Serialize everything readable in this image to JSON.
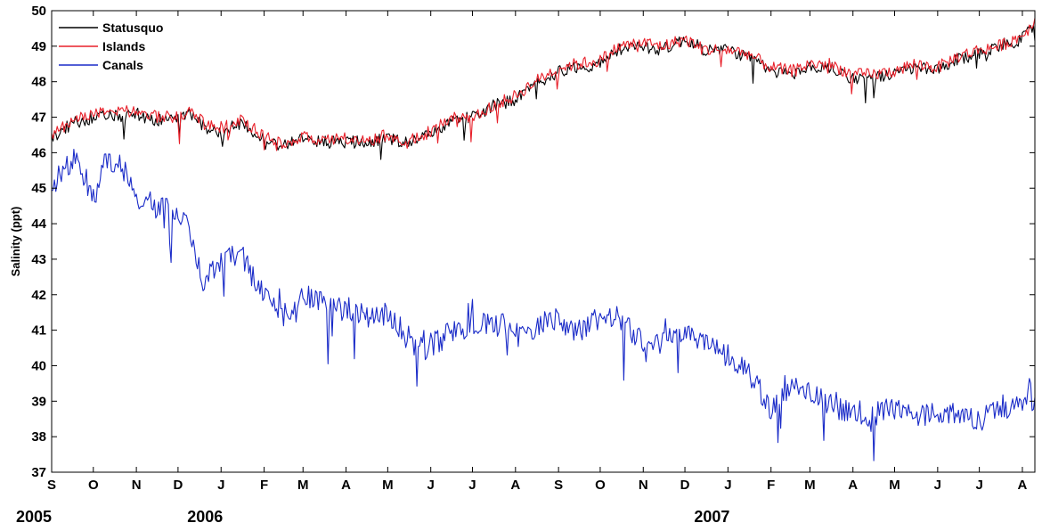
{
  "chart_data": {
    "type": "line",
    "title": "",
    "xlabel": "",
    "ylabel": "Salinity (ppt)",
    "ylim": [
      37,
      50
    ],
    "yticks": [
      37,
      38,
      39,
      40,
      41,
      42,
      43,
      44,
      45,
      46,
      47,
      48,
      49,
      50
    ],
    "xlim": [
      "2005-09-01",
      "2007-08-10"
    ],
    "month_ticks": [
      {
        "date": "2005-09-01",
        "label": "S"
      },
      {
        "date": "2005-10-01",
        "label": "O"
      },
      {
        "date": "2005-11-01",
        "label": "N"
      },
      {
        "date": "2005-12-01",
        "label": "D"
      },
      {
        "date": "2006-01-01",
        "label": "J"
      },
      {
        "date": "2006-02-01",
        "label": "F"
      },
      {
        "date": "2006-03-01",
        "label": "M"
      },
      {
        "date": "2006-04-01",
        "label": "A"
      },
      {
        "date": "2006-05-01",
        "label": "M"
      },
      {
        "date": "2006-06-01",
        "label": "J"
      },
      {
        "date": "2006-07-01",
        "label": "J"
      },
      {
        "date": "2006-08-01",
        "label": "A"
      },
      {
        "date": "2006-09-01",
        "label": "S"
      },
      {
        "date": "2006-10-01",
        "label": "O"
      },
      {
        "date": "2006-11-01",
        "label": "N"
      },
      {
        "date": "2006-12-01",
        "label": "D"
      },
      {
        "date": "2007-01-01",
        "label": "J"
      },
      {
        "date": "2007-02-01",
        "label": "F"
      },
      {
        "date": "2007-03-01",
        "label": "M"
      },
      {
        "date": "2007-04-01",
        "label": "A"
      },
      {
        "date": "2007-05-01",
        "label": "M"
      },
      {
        "date": "2007-06-01",
        "label": "J"
      },
      {
        "date": "2007-07-01",
        "label": "J"
      },
      {
        "date": "2007-08-01",
        "label": "A"
      }
    ],
    "year_labels": [
      {
        "date": "2005-09-01",
        "label": "2005"
      },
      {
        "date": "2006-01-01",
        "label": "2006"
      },
      {
        "date": "2007-01-01",
        "label": "2007"
      }
    ],
    "legend": {
      "position": "top-left",
      "entries": [
        "Statusquo",
        "Islands",
        "Canals"
      ]
    },
    "grid": false,
    "series": [
      {
        "name": "Statusquo",
        "color": "#000000",
        "x": [
          "2005-09-01",
          "2005-09-15",
          "2005-10-01",
          "2005-10-15",
          "2005-11-01",
          "2005-11-15",
          "2005-12-01",
          "2005-12-10",
          "2005-12-20",
          "2006-01-01",
          "2006-01-15",
          "2006-02-01",
          "2006-02-15",
          "2006-03-01",
          "2006-03-15",
          "2006-04-01",
          "2006-04-15",
          "2006-05-01",
          "2006-05-15",
          "2006-06-01",
          "2006-06-15",
          "2006-07-01",
          "2006-07-15",
          "2006-08-01",
          "2006-08-15",
          "2006-09-01",
          "2006-09-15",
          "2006-10-01",
          "2006-10-15",
          "2006-11-01",
          "2006-11-15",
          "2006-12-01",
          "2006-12-15",
          "2007-01-01",
          "2007-01-15",
          "2007-02-01",
          "2007-02-15",
          "2007-03-01",
          "2007-03-15",
          "2007-04-01",
          "2007-04-15",
          "2007-05-01",
          "2007-05-15",
          "2007-06-01",
          "2007-06-15",
          "2007-07-01",
          "2007-07-15",
          "2007-08-01",
          "2007-08-10"
        ],
        "y": [
          46.4,
          46.8,
          47.0,
          47.0,
          47.1,
          46.9,
          47.0,
          47.1,
          46.7,
          46.6,
          46.8,
          46.4,
          46.2,
          46.4,
          46.3,
          46.3,
          46.3,
          46.4,
          46.3,
          46.5,
          46.9,
          47.0,
          47.3,
          47.5,
          47.9,
          48.3,
          48.4,
          48.5,
          48.9,
          49.0,
          48.9,
          49.2,
          48.9,
          48.9,
          48.7,
          48.3,
          48.2,
          48.4,
          48.4,
          48.1,
          48.1,
          48.2,
          48.4,
          48.3,
          48.6,
          48.8,
          49.0,
          49.2,
          49.6
        ]
      },
      {
        "name": "Islands",
        "color": "#e8202a",
        "x": [
          "2005-09-01",
          "2005-09-15",
          "2005-10-01",
          "2005-10-15",
          "2005-11-01",
          "2005-11-15",
          "2005-12-01",
          "2005-12-10",
          "2005-12-20",
          "2006-01-01",
          "2006-01-15",
          "2006-02-01",
          "2006-02-15",
          "2006-03-01",
          "2006-03-15",
          "2006-04-01",
          "2006-04-15",
          "2006-05-01",
          "2006-05-15",
          "2006-06-01",
          "2006-06-15",
          "2006-07-01",
          "2006-07-15",
          "2006-08-01",
          "2006-08-15",
          "2006-09-01",
          "2006-09-15",
          "2006-10-01",
          "2006-10-15",
          "2006-11-01",
          "2006-11-15",
          "2006-12-01",
          "2006-12-15",
          "2007-01-01",
          "2007-01-15",
          "2007-02-01",
          "2007-02-15",
          "2007-03-01",
          "2007-03-15",
          "2007-04-01",
          "2007-04-15",
          "2007-05-01",
          "2007-05-15",
          "2007-06-01",
          "2007-06-15",
          "2007-07-01",
          "2007-07-15",
          "2007-08-01",
          "2007-08-10"
        ],
        "y": [
          46.5,
          46.9,
          47.1,
          47.1,
          47.2,
          47.0,
          47.0,
          47.2,
          46.8,
          46.7,
          46.9,
          46.5,
          46.2,
          46.5,
          46.3,
          46.4,
          46.3,
          46.5,
          46.3,
          46.6,
          47.0,
          47.0,
          47.3,
          47.6,
          48.0,
          48.4,
          48.5,
          48.6,
          49.0,
          49.1,
          49.0,
          49.2,
          48.9,
          48.9,
          48.8,
          48.4,
          48.3,
          48.5,
          48.5,
          48.2,
          48.2,
          48.3,
          48.5,
          48.4,
          48.7,
          48.9,
          49.0,
          49.3,
          49.7
        ]
      },
      {
        "name": "Canals",
        "color": "#1a2bc8",
        "x": [
          "2005-09-01",
          "2005-09-10",
          "2005-09-20",
          "2005-10-01",
          "2005-10-10",
          "2005-10-20",
          "2005-11-01",
          "2005-11-15",
          "2005-12-01",
          "2005-12-10",
          "2005-12-20",
          "2006-01-01",
          "2006-01-15",
          "2006-02-01",
          "2006-02-15",
          "2006-03-01",
          "2006-03-15",
          "2006-04-01",
          "2006-04-15",
          "2006-05-01",
          "2006-05-15",
          "2006-06-01",
          "2006-06-15",
          "2006-07-01",
          "2006-07-15",
          "2006-08-01",
          "2006-08-15",
          "2006-09-01",
          "2006-09-15",
          "2006-10-01",
          "2006-10-15",
          "2006-11-01",
          "2006-11-15",
          "2006-12-01",
          "2006-12-15",
          "2007-01-01",
          "2007-01-15",
          "2007-02-01",
          "2007-02-15",
          "2007-03-01",
          "2007-03-15",
          "2007-04-01",
          "2007-04-15",
          "2007-05-01",
          "2007-05-15",
          "2007-06-01",
          "2007-06-15",
          "2007-07-01",
          "2007-07-15",
          "2007-08-01",
          "2007-08-10"
        ],
        "y": [
          44.9,
          45.6,
          45.9,
          44.6,
          45.9,
          45.7,
          44.8,
          44.5,
          44.3,
          43.8,
          42.3,
          43.0,
          43.2,
          41.9,
          41.4,
          42.1,
          41.7,
          41.6,
          41.4,
          41.5,
          40.8,
          40.6,
          40.9,
          41.1,
          41.2,
          41.1,
          41.0,
          41.3,
          41.0,
          41.4,
          41.3,
          40.6,
          40.7,
          40.9,
          40.6,
          40.3,
          39.9,
          38.8,
          39.3,
          39.3,
          38.9,
          38.7,
          38.6,
          38.8,
          38.6,
          38.7,
          38.7,
          38.4,
          38.8,
          39.0,
          39.1
        ]
      }
    ]
  }
}
